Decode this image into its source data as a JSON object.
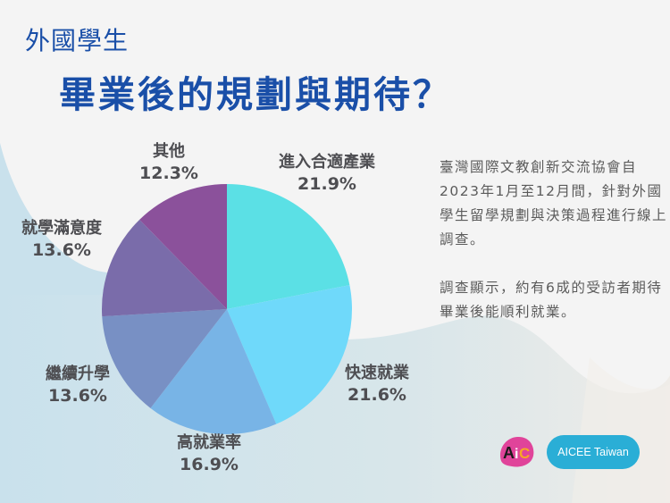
{
  "header": {
    "subtitle": "外國學生",
    "title": "畢業後的規劃與期待？"
  },
  "description": {
    "paragraph1": "臺灣國際文教創新交流協會自2023年1月至12月間，針對外國學生留學規劃與決策過程進行線上調查。",
    "paragraph2": "調查顯示，約有6成的受訪者期待畢業後能順利就業。"
  },
  "branding": {
    "logo_text": "AiC",
    "button_label": "AICEE Taiwan",
    "button_color": "#2aaed6"
  },
  "labels": [
    {
      "name": "進入合適產業",
      "pct": "21.9%"
    },
    {
      "name": "快速就業",
      "pct": "21.6%"
    },
    {
      "name": "高就業率",
      "pct": "16.9%"
    },
    {
      "name": "繼續升學",
      "pct": "13.6%"
    },
    {
      "name": "就學滿意度",
      "pct": "13.6%"
    },
    {
      "name": "其他",
      "pct": "12.3%"
    }
  ],
  "chart_data": {
    "type": "pie",
    "title": "外國學生 畢業後的規劃與期待？",
    "categories": [
      "進入合適產業",
      "快速就業",
      "高就業率",
      "繼續升學",
      "就學滿意度",
      "其他"
    ],
    "values": [
      21.9,
      21.6,
      16.9,
      13.6,
      13.6,
      12.3
    ],
    "unit": "%",
    "colors": [
      "#5be0e5",
      "#6fd9fa",
      "#78b4e6",
      "#7890c4",
      "#7a6caa",
      "#8b519b"
    ],
    "start_angle": "12 o'clock",
    "direction": "clockwise",
    "legend": "none (labels placed outside slices)"
  }
}
